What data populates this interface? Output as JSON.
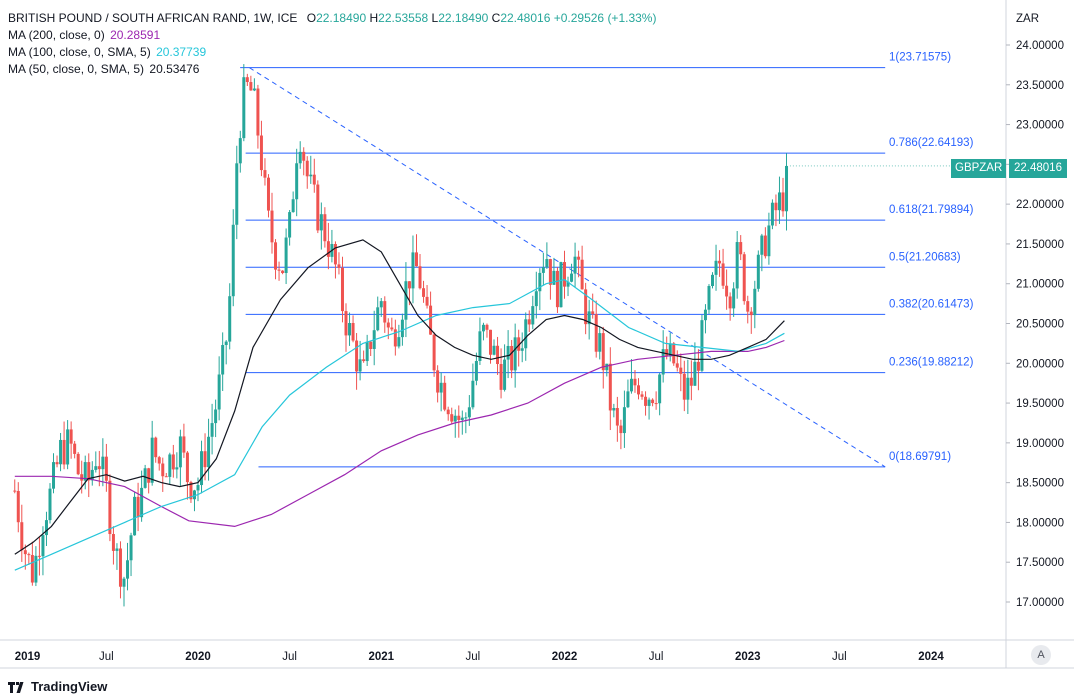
{
  "header": {
    "symbol_title": "BRITISH POUND / SOUTH AFRICAN RAND, 1W, ICE",
    "o_label": "O",
    "o_value": "22.18490",
    "h_label": "H",
    "h_value": "22.53558",
    "l_label": "L",
    "l_value": "22.18490",
    "c_label": "C",
    "c_value": "22.48016",
    "change": "+0.29526 (+1.33%)"
  },
  "indicators": [
    {
      "label": "MA (200, close, 0)",
      "value": "20.28591",
      "color": "#9c27b0"
    },
    {
      "label": "MA (100, close, 0, SMA, 5)",
      "value": "20.37739",
      "color": "#26c6da"
    },
    {
      "label": "MA (50, close, 0, SMA, 5)",
      "value": "20.53476",
      "color": "#131722"
    }
  ],
  "currency_label": "ZAR",
  "current_price": {
    "symbol": "GBPZAR",
    "value": "22.48016",
    "price": 22.48016
  },
  "auto_button": "A",
  "branding": "TradingView",
  "colors": {
    "up": "#26a69a",
    "down": "#ef5350",
    "fib": "#2962ff",
    "fib_text": "#2962ff",
    "ma200": "#9c27b0",
    "ma100": "#26c6da",
    "ma50": "#131722",
    "grid": "#eef0f3"
  },
  "chart_data": {
    "type": "candlestick",
    "title": "BRITISH POUND / SOUTH AFRICAN RAND, 1W, ICE",
    "ylabel": "ZAR",
    "ylim": [
      16.6,
      24.2
    ],
    "y_ticks": [
      "24.00000",
      "23.50000",
      "23.00000",
      "22.50000",
      "22.00000",
      "21.50000",
      "21.00000",
      "20.50000",
      "20.00000",
      "19.50000",
      "19.00000",
      "18.50000",
      "18.00000",
      "17.50000",
      "17.00000"
    ],
    "x_ticks": [
      {
        "label": "2019",
        "t": 2019.0
      },
      {
        "label": "Jul",
        "t": 2019.5
      },
      {
        "label": "2020",
        "t": 2020.0
      },
      {
        "label": "Jul",
        "t": 2020.5
      },
      {
        "label": "2021",
        "t": 2021.0
      },
      {
        "label": "Jul",
        "t": 2021.5
      },
      {
        "label": "2022",
        "t": 2022.0
      },
      {
        "label": "Jul",
        "t": 2022.5
      },
      {
        "label": "2023",
        "t": 2023.0
      },
      {
        "label": "Jul",
        "t": 2023.5
      },
      {
        "label": "2024",
        "t": 2024.0
      }
    ],
    "xlim": [
      2019.0,
      2024.45
    ],
    "fibonacci": [
      {
        "label": "1(23.71575)",
        "value": 23.71575
      },
      {
        "label": "0.786(22.64193)",
        "value": 22.64193
      },
      {
        "label": "0.618(21.79894)",
        "value": 21.79894
      },
      {
        "label": "0.5(21.20683)",
        "value": 21.20683
      },
      {
        "label": "0.382(20.61473)",
        "value": 20.61473
      },
      {
        "label": "0.236(19.88212)",
        "value": 19.88212
      },
      {
        "label": "0(18.69791)",
        "value": 18.69791
      }
    ],
    "fib_range_t": [
      2020.23,
      2023.75
    ],
    "fib_base_t": [
      2020.33,
      2023.75
    ],
    "trendline": {
      "t0": 2020.28,
      "v0": 23.71575,
      "t1": 2023.75,
      "v1": 18.69791
    },
    "path_points": [
      [
        2019.0,
        18.4
      ],
      [
        2019.05,
        17.7
      ],
      [
        2019.1,
        17.35
      ],
      [
        2019.15,
        18.0
      ],
      [
        2019.2,
        18.4
      ],
      [
        2019.25,
        18.9
      ],
      [
        2019.3,
        19.0
      ],
      [
        2019.35,
        18.6
      ],
      [
        2019.4,
        18.5
      ],
      [
        2019.45,
        18.9
      ],
      [
        2019.5,
        18.4
      ],
      [
        2019.55,
        17.6
      ],
      [
        2019.6,
        17.3
      ],
      [
        2019.65,
        18.1
      ],
      [
        2019.7,
        18.4
      ],
      [
        2019.75,
        18.9
      ],
      [
        2019.8,
        18.7
      ],
      [
        2019.85,
        18.8
      ],
      [
        2019.9,
        19.0
      ],
      [
        2019.95,
        18.5
      ],
      [
        2020.0,
        18.5
      ],
      [
        2020.05,
        19.0
      ],
      [
        2020.1,
        19.5
      ],
      [
        2020.15,
        20.2
      ],
      [
        2020.18,
        21.0
      ],
      [
        2020.21,
        22.5
      ],
      [
        2020.24,
        23.3
      ],
      [
        2020.28,
        23.5
      ],
      [
        2020.31,
        23.2
      ],
      [
        2020.34,
        22.7
      ],
      [
        2020.38,
        21.8
      ],
      [
        2020.42,
        21.4
      ],
      [
        2020.46,
        21.2
      ],
      [
        2020.5,
        21.7
      ],
      [
        2020.55,
        23.0
      ],
      [
        2020.6,
        22.3
      ],
      [
        2020.65,
        21.9
      ],
      [
        2020.7,
        21.6
      ],
      [
        2020.75,
        21.2
      ],
      [
        2020.8,
        20.6
      ],
      [
        2020.85,
        20.2
      ],
      [
        2020.9,
        19.8
      ],
      [
        2020.95,
        20.4
      ],
      [
        2021.0,
        20.8
      ],
      [
        2021.05,
        20.3
      ],
      [
        2021.1,
        20.6
      ],
      [
        2021.15,
        21.1
      ],
      [
        2021.2,
        21.2
      ],
      [
        2021.25,
        20.5
      ],
      [
        2021.3,
        19.9
      ],
      [
        2021.35,
        19.6
      ],
      [
        2021.4,
        19.4
      ],
      [
        2021.45,
        19.2
      ],
      [
        2021.5,
        19.8
      ],
      [
        2021.55,
        20.4
      ],
      [
        2021.6,
        20.2
      ],
      [
        2021.65,
        19.9
      ],
      [
        2021.7,
        20.0
      ],
      [
        2021.75,
        20.2
      ],
      [
        2021.8,
        20.6
      ],
      [
        2021.85,
        21.2
      ],
      [
        2021.9,
        21.4
      ],
      [
        2021.95,
        20.9
      ],
      [
        2022.0,
        21.1
      ],
      [
        2022.05,
        21.4
      ],
      [
        2022.1,
        20.8
      ],
      [
        2022.15,
        20.4
      ],
      [
        2022.2,
        20.2
      ],
      [
        2022.25,
        19.5
      ],
      [
        2022.3,
        19.0
      ],
      [
        2022.35,
        19.6
      ],
      [
        2022.4,
        19.8
      ],
      [
        2022.45,
        19.6
      ],
      [
        2022.5,
        19.7
      ],
      [
        2022.55,
        20.1
      ],
      [
        2022.6,
        20.0
      ],
      [
        2022.65,
        19.6
      ],
      [
        2022.7,
        19.8
      ],
      [
        2022.75,
        20.3
      ],
      [
        2022.8,
        20.9
      ],
      [
        2022.85,
        21.3
      ],
      [
        2022.9,
        20.9
      ],
      [
        2022.95,
        21.4
      ],
      [
        2023.0,
        20.7
      ],
      [
        2023.05,
        21.1
      ],
      [
        2023.1,
        21.6
      ],
      [
        2023.15,
        21.9
      ],
      [
        2023.2,
        22.15
      ],
      [
        2023.23,
        22.48
      ]
    ],
    "ma200": [
      [
        2019.0,
        18.58
      ],
      [
        2019.2,
        18.58
      ],
      [
        2019.4,
        18.55
      ],
      [
        2019.6,
        18.45
      ],
      [
        2019.8,
        18.2
      ],
      [
        2019.95,
        18.02
      ],
      [
        2020.2,
        17.95
      ],
      [
        2020.4,
        18.1
      ],
      [
        2020.6,
        18.35
      ],
      [
        2020.8,
        18.6
      ],
      [
        2021.0,
        18.9
      ],
      [
        2021.2,
        19.1
      ],
      [
        2021.4,
        19.25
      ],
      [
        2021.6,
        19.35
      ],
      [
        2021.8,
        19.5
      ],
      [
        2022.0,
        19.75
      ],
      [
        2022.2,
        19.95
      ],
      [
        2022.4,
        20.05
      ],
      [
        2022.6,
        20.1
      ],
      [
        2022.8,
        20.15
      ],
      [
        2023.0,
        20.15
      ],
      [
        2023.1,
        20.2
      ],
      [
        2023.2,
        20.28591
      ]
    ],
    "ma100": [
      [
        2019.0,
        17.4
      ],
      [
        2019.2,
        17.6
      ],
      [
        2019.4,
        17.8
      ],
      [
        2019.6,
        18.0
      ],
      [
        2019.8,
        18.2
      ],
      [
        2020.0,
        18.35
      ],
      [
        2020.2,
        18.6
      ],
      [
        2020.35,
        19.2
      ],
      [
        2020.5,
        19.6
      ],
      [
        2020.7,
        19.95
      ],
      [
        2020.9,
        20.25
      ],
      [
        2021.1,
        20.4
      ],
      [
        2021.3,
        20.6
      ],
      [
        2021.5,
        20.7
      ],
      [
        2021.7,
        20.75
      ],
      [
        2021.9,
        21.0
      ],
      [
        2022.0,
        21.05
      ],
      [
        2022.15,
        20.8
      ],
      [
        2022.35,
        20.45
      ],
      [
        2022.55,
        20.25
      ],
      [
        2022.75,
        20.2
      ],
      [
        2022.95,
        20.15
      ],
      [
        2023.1,
        20.25
      ],
      [
        2023.2,
        20.37739
      ]
    ],
    "ma50": [
      [
        2019.0,
        17.6
      ],
      [
        2019.1,
        17.75
      ],
      [
        2019.2,
        17.95
      ],
      [
        2019.3,
        18.25
      ],
      [
        2019.4,
        18.55
      ],
      [
        2019.5,
        18.6
      ],
      [
        2019.6,
        18.52
      ],
      [
        2019.7,
        18.58
      ],
      [
        2019.8,
        18.5
      ],
      [
        2019.9,
        18.45
      ],
      [
        2020.0,
        18.5
      ],
      [
        2020.1,
        18.8
      ],
      [
        2020.2,
        19.4
      ],
      [
        2020.3,
        20.2
      ],
      [
        2020.45,
        20.8
      ],
      [
        2020.6,
        21.2
      ],
      [
        2020.75,
        21.45
      ],
      [
        2020.9,
        21.55
      ],
      [
        2021.0,
        21.4
      ],
      [
        2021.1,
        21.0
      ],
      [
        2021.2,
        20.6
      ],
      [
        2021.3,
        20.35
      ],
      [
        2021.4,
        20.2
      ],
      [
        2021.5,
        20.1
      ],
      [
        2021.6,
        20.05
      ],
      [
        2021.7,
        20.1
      ],
      [
        2021.8,
        20.35
      ],
      [
        2021.9,
        20.55
      ],
      [
        2022.0,
        20.6
      ],
      [
        2022.1,
        20.55
      ],
      [
        2022.2,
        20.45
      ],
      [
        2022.3,
        20.3
      ],
      [
        2022.4,
        20.2
      ],
      [
        2022.5,
        20.15
      ],
      [
        2022.6,
        20.1
      ],
      [
        2022.7,
        20.05
      ],
      [
        2022.8,
        20.05
      ],
      [
        2022.9,
        20.1
      ],
      [
        2023.0,
        20.2
      ],
      [
        2023.1,
        20.3
      ],
      [
        2023.2,
        20.53476
      ]
    ]
  }
}
